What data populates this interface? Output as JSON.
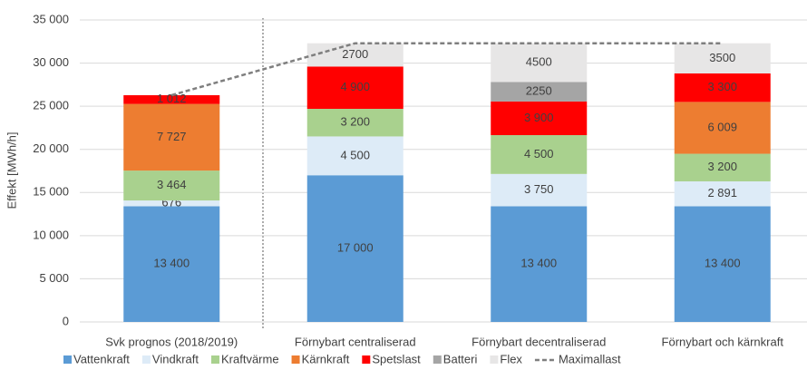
{
  "chart_data": {
    "type": "stacked_bar",
    "y_label": "Effekt [MWh/h]",
    "categories": [
      "Svk prognos (2018/2019)",
      "Förnybart centraliserad",
      "Förnybart decentraliserad",
      "Förnybart och kärnkraft"
    ],
    "series": [
      {
        "name": "Vattenkraft",
        "color": "#5b9bd5",
        "values": [
          13400,
          17000,
          13400,
          13400
        ],
        "value_labels": [
          "13 400",
          "17 000",
          "13 400",
          "13 400"
        ]
      },
      {
        "name": "Vindkraft",
        "color": "#ddebf7",
        "values": [
          676,
          4500,
          3750,
          2891
        ],
        "value_labels": [
          "676",
          "4 500",
          "3 750",
          "2 891"
        ]
      },
      {
        "name": "Kraftvärme",
        "color": "#a9d18e",
        "values": [
          3464,
          3200,
          4500,
          3200
        ],
        "value_labels": [
          "3 464",
          "3 200",
          "4 500",
          "3 200"
        ]
      },
      {
        "name": "Kärnkraft",
        "color": "#ed7d31",
        "values": [
          7727,
          null,
          null,
          6009
        ],
        "value_labels": [
          "7 727",
          null,
          null,
          "6 009"
        ]
      },
      {
        "name": "Spetslast",
        "color": "#ff0000",
        "values": [
          1012,
          4900,
          3900,
          3300
        ],
        "value_labels": [
          "1 012",
          "4 900",
          "3 900",
          "3 300"
        ]
      },
      {
        "name": "Batteri",
        "color": "#a5a5a5",
        "values": [
          null,
          null,
          2250,
          null
        ],
        "value_labels": [
          null,
          null,
          "2250",
          null
        ]
      },
      {
        "name": "Flex",
        "color": "#e7e6e6",
        "values": [
          null,
          2700,
          4500,
          3500
        ],
        "value_labels": [
          null,
          "2700",
          "4500",
          "3500"
        ]
      }
    ],
    "line": {
      "name": "Maximallast",
      "color": "#7f7f7f",
      "values": [
        26279,
        32300,
        32300,
        32300
      ]
    },
    "ylim": [
      0,
      35000
    ],
    "yticks": [
      0,
      {
        "value": 5000,
        "label": "5 000"
      },
      {
        "value": 10000,
        "label": "10 000"
      },
      {
        "value": 15000,
        "label": "15 000"
      },
      {
        "value": 20000,
        "label": "20 000"
      },
      {
        "value": 25000,
        "label": "25 000"
      },
      {
        "value": 30000,
        "label": "30 000"
      },
      {
        "value": 35000,
        "label": "35 000"
      }
    ],
    "grid": true
  }
}
